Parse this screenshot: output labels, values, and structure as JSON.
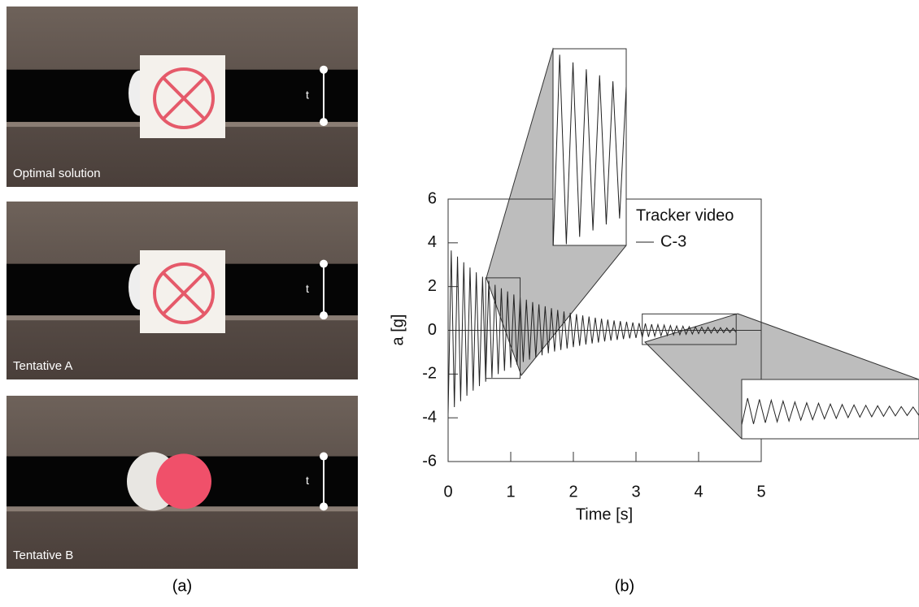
{
  "panels": {
    "photos": [
      {
        "label": "Optimal solution",
        "marker": "t"
      },
      {
        "label": "Tentative A",
        "marker": "t"
      },
      {
        "label": "Tentative B",
        "marker": "t"
      }
    ],
    "captions": [
      "(a)",
      "(b)"
    ]
  },
  "chart_data": {
    "type": "line",
    "xlabel": "Time [s]",
    "ylabel": "a  [g]",
    "legend_title": "Tracker video",
    "xlim": [
      0,
      5
    ],
    "ylim": [
      -6,
      6
    ],
    "xticks": [
      0,
      1,
      2,
      3,
      4,
      5
    ],
    "yticks": [
      -6,
      -4,
      -2,
      0,
      2,
      4,
      6
    ],
    "x": [
      0,
      0.05,
      0.1,
      0.15,
      0.2,
      0.25,
      0.3,
      0.35,
      0.4,
      0.45,
      0.5,
      0.55,
      0.6,
      0.65,
      0.7,
      0.75,
      0.8,
      0.85,
      0.9,
      0.95,
      1,
      1.05,
      1.1,
      1.15,
      1.2,
      1.25,
      1.3,
      1.35,
      1.4,
      1.45,
      1.5,
      1.55,
      1.6,
      1.65,
      1.7,
      1.75,
      1.8,
      1.85,
      1.9,
      1.95,
      2,
      2.05,
      2.1,
      2.15,
      2.2,
      2.25,
      2.3,
      2.35,
      2.4,
      2.45,
      2.5,
      2.55,
      2.6,
      2.65,
      2.7,
      2.75,
      2.8,
      2.85,
      2.9,
      2.95,
      3,
      3.05,
      3.1,
      3.15,
      3.2,
      3.25,
      3.3,
      3.35,
      3.4,
      3.45,
      3.5,
      3.55,
      3.6,
      3.65,
      3.7,
      3.75,
      3.8,
      3.85,
      3.9,
      3.95,
      4,
      4.05,
      4.1,
      4.15,
      4.2,
      4.25,
      4.3,
      4.35,
      4.4,
      4.45,
      4.5,
      4.55,
      4.6
    ],
    "series": [
      {
        "name": "C-3",
        "color": "#222222",
        "values": [
          -3.8,
          3.65,
          -3.51,
          3.37,
          -3.24,
          3.11,
          -2.99,
          2.87,
          -2.76,
          2.65,
          -2.55,
          2.45,
          -2.35,
          2.26,
          -2.17,
          2.08,
          -2,
          1.92,
          -1.85,
          1.78,
          -1.71,
          1.64,
          -1.57,
          1.51,
          -1.45,
          1.4,
          -1.34,
          1.29,
          -1.24,
          1.19,
          -1.14,
          1.1,
          -1.05,
          1.01,
          -0.97,
          0.93,
          -0.9,
          0.86,
          -0.83,
          0.8,
          -0.77,
          0.74,
          -0.71,
          0.68,
          -0.65,
          0.63,
          -0.6,
          0.58,
          -0.56,
          0.53,
          -0.51,
          0.49,
          -0.47,
          0.45,
          -0.44,
          0.42,
          -0.4,
          0.39,
          -0.37,
          0.36,
          -0.35,
          0.33,
          -0.32,
          0.31,
          -0.3,
          0.28,
          -0.27,
          0.26,
          -0.25,
          0.24,
          -0.23,
          0.22,
          -0.21,
          0.2,
          -0.2,
          0.19,
          -0.18,
          0.17,
          -0.17,
          0.16,
          -0.15,
          0.15,
          -0.14,
          0.14,
          -0.13,
          0.13,
          -0.12,
          0.12,
          -0.11,
          0.11,
          -0.1,
          0.1,
          -0.1
        ]
      }
    ]
  }
}
